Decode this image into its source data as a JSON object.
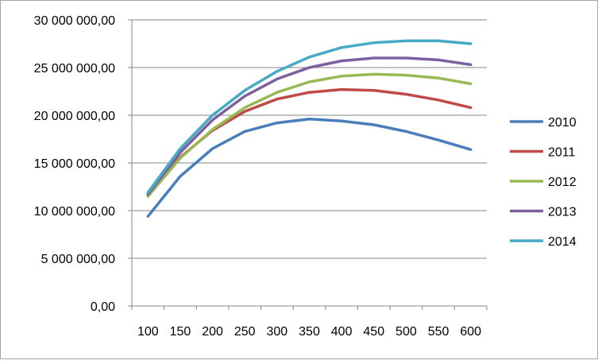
{
  "chart_data": {
    "type": "line",
    "title": "",
    "xlabel": "",
    "ylabel": "",
    "x": [
      100,
      150,
      200,
      250,
      300,
      350,
      400,
      450,
      500,
      550,
      600
    ],
    "x_tick_labels": [
      "100",
      "150",
      "200",
      "250",
      "300",
      "350",
      "400",
      "450",
      "500",
      "550",
      "600"
    ],
    "ylim": [
      0,
      30000000
    ],
    "y_tick_values": [
      0,
      5000000,
      10000000,
      15000000,
      20000000,
      25000000,
      30000000
    ],
    "y_tick_labels": [
      "0,00",
      "5 000 000,00",
      "10 000 000,00",
      "15 000 000,00",
      "20 000 000,00",
      "25 000 000,00",
      "30 000 000,00"
    ],
    "grid": "horizontal",
    "legend_position": "right",
    "series": [
      {
        "name": "2010",
        "color": "#4a7ebb",
        "values": [
          9400000,
          13600000,
          16500000,
          18300000,
          19200000,
          19600000,
          19400000,
          19000000,
          18300000,
          17400000,
          16400000
        ]
      },
      {
        "name": "2011",
        "color": "#be4b48",
        "values": [
          11600000,
          15600000,
          18400000,
          20400000,
          21700000,
          22400000,
          22700000,
          22600000,
          22200000,
          21600000,
          20800000
        ]
      },
      {
        "name": "2012",
        "color": "#98b954",
        "values": [
          11500000,
          15500000,
          18500000,
          20800000,
          22400000,
          23500000,
          24100000,
          24300000,
          24200000,
          23900000,
          23300000
        ]
      },
      {
        "name": "2013",
        "color": "#7d60a0",
        "values": [
          11700000,
          16100000,
          19500000,
          22000000,
          23800000,
          25000000,
          25700000,
          26000000,
          26000000,
          25800000,
          25300000
        ]
      },
      {
        "name": "2014",
        "color": "#46aac5",
        "values": [
          11900000,
          16500000,
          20000000,
          22600000,
          24600000,
          26100000,
          27100000,
          27600000,
          27800000,
          27800000,
          27500000
        ]
      }
    ]
  }
}
